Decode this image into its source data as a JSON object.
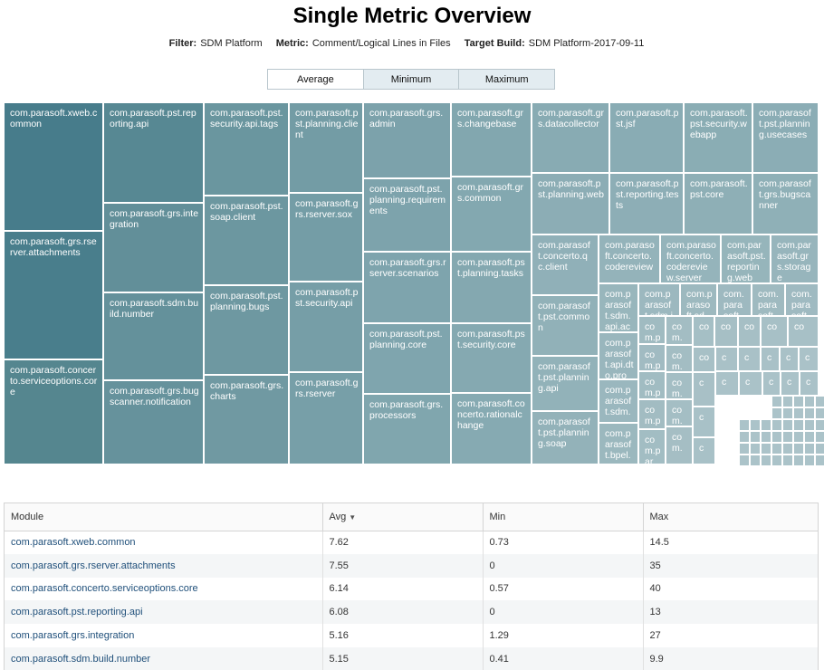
{
  "title": "Single Metric Overview",
  "filters": [
    {
      "key": "Filter:",
      "value": "SDM Platform"
    },
    {
      "key": "Metric:",
      "value": "Comment/Logical Lines in Files"
    },
    {
      "key": "Target Build:",
      "value": "SDM Platform-2017-09-11"
    }
  ],
  "toggle": {
    "options": [
      "Average",
      "Minimum",
      "Maximum"
    ],
    "selected": "Average"
  },
  "treemap": {
    "color_scale": [
      "#447a89",
      "#8cadb6",
      "#a9c1c7"
    ],
    "tiles": [
      {
        "label": "com.parasoft.xweb.common",
        "color": "#477c8b"
      },
      {
        "label": "com.parasoft.grs.rserver.attachments",
        "color": "#497e8c"
      },
      {
        "label": "com.parasoft.concerto.serviceoptions.core",
        "color": "#55868f"
      },
      {
        "label": "com.parasoft.pst.reporting.api",
        "color": "#578893"
      },
      {
        "label": "com.parasoft.grs.integration",
        "color": "#628f99"
      },
      {
        "label": "com.parasoft.sdm.build.number",
        "color": "#64919b"
      },
      {
        "label": "com.parasoft.grs.bugscanner.notification",
        "color": "#66929c"
      },
      {
        "label": "com.parasoft.pst.security.api.tags",
        "color": "#6a969f"
      },
      {
        "label": "com.parasoft.pst.soap.client",
        "color": "#6c97a0"
      },
      {
        "label": "com.parasoft.pst.planning.bugs",
        "color": "#6e98a1"
      },
      {
        "label": "com.parasoft.grs.charts",
        "color": "#7099a2"
      },
      {
        "label": "com.parasoft.pst.planning.client",
        "color": "#739ca5"
      },
      {
        "label": "com.parasoft.grs.rserver.sox",
        "color": "#749da6"
      },
      {
        "label": "com.parasoft.pst.security.api",
        "color": "#769ea7"
      },
      {
        "label": "com.parasoft.grs.rserver",
        "color": "#779fa8"
      },
      {
        "label": "com.parasoft.grs.admin",
        "color": "#7ca2ab"
      },
      {
        "label": "com.parasoft.pst.planning.requirements",
        "color": "#7da3ac"
      },
      {
        "label": "com.parasoft.grs.rserver.scenarios",
        "color": "#7ea4ad"
      },
      {
        "label": "com.parasoft.pst.planning.core",
        "color": "#7fa5ae"
      },
      {
        "label": "com.parasoft.grs.processors",
        "color": "#80a6ae"
      },
      {
        "label": "com.parasoft.grs.changebase",
        "color": "#82a7af"
      },
      {
        "label": "com.parasoft.grs.common",
        "color": "#83a8b0"
      },
      {
        "label": "com.parasoft.pst.planning.tasks",
        "color": "#84a8b0"
      },
      {
        "label": "com.parasoft.pst.security.core",
        "color": "#85a9b1"
      },
      {
        "label": "com.parasoft.concerto.rationalchange",
        "color": "#86aab2"
      },
      {
        "label": "com.parasoft.grs.datacollector",
        "color": "#88abb3"
      },
      {
        "label": "com.parasoft.pst.jsf",
        "color": "#89acb4"
      },
      {
        "label": "com.parasoft.pst.security.webapp",
        "color": "#8aadb4"
      },
      {
        "label": "com.parasoft.pst.planning.usecases",
        "color": "#8badb5"
      },
      {
        "label": "com.parasoft.pst.planning.web",
        "color": "#8cadb5"
      },
      {
        "label": "com.parasoft.pst.reporting.tests",
        "color": "#8daeb6"
      },
      {
        "label": "com.parasoft.pst.core",
        "color": "#8eafb6"
      },
      {
        "label": "com.parasoft.grs.bugscanner",
        "color": "#8fb0b7"
      },
      {
        "label": "com.parasoft.concerto.qc.client",
        "color": "#90b0b8"
      },
      {
        "label": "com.parasoft.pst.common",
        "color": "#91b1b8"
      },
      {
        "label": "com.parasoft.pst.planning.api",
        "color": "#92b2b9"
      },
      {
        "label": "com.parasoft.pst.planning.soap",
        "color": "#93b2b9"
      },
      {
        "label": "com.parasoft.concerto.codereview",
        "color": "#94b3ba"
      },
      {
        "label": "com.parasoft.concerto.codereview.server",
        "color": "#95b4bb"
      },
      {
        "label": "com.parasoft.pst.reporting.web",
        "color": "#96b5bb"
      },
      {
        "label": "com.parasoft.grs.storage",
        "color": "#97b5bc"
      },
      {
        "label": "com.parasoft.sdm.api.ac",
        "color": "#98b6bc"
      },
      {
        "label": "com.parasoft.api.dto.pro",
        "color": "#99b6bd"
      },
      {
        "label": "com.parasoft.sdm.",
        "color": "#9ab7be"
      },
      {
        "label": "com.parasoft.bpel.",
        "color": "#9bb8be"
      },
      {
        "label": "com.parasoft.sdm.ims",
        "color": "#9cb8bf"
      },
      {
        "label": "com.parasoft.sd",
        "color": "#9db9bf"
      },
      {
        "label": "com.parasoft",
        "color": "#9eb9c0"
      },
      {
        "label": "com.parasoft",
        "color": "#9fbac0"
      },
      {
        "label": "com.parasoft",
        "color": "#9fbac1"
      },
      {
        "label": "com.par",
        "color": "#a0bbc1"
      },
      {
        "label": "com.par",
        "color": "#a1bbc2"
      },
      {
        "label": "com.par",
        "color": "#a1bcc2"
      },
      {
        "label": "com.par",
        "color": "#a2bcc2"
      },
      {
        "label": "com.par",
        "color": "#a2bdc3"
      },
      {
        "label": "co m.",
        "color": "#a3bdc3"
      },
      {
        "label": "co m.",
        "color": "#a3bdc3"
      },
      {
        "label": "co m.",
        "color": "#a4bec4"
      },
      {
        "label": "co m.",
        "color": "#a4bec4"
      },
      {
        "label": "co m.",
        "color": "#a5bec4"
      },
      {
        "label": "co",
        "color": "#a5bfc5"
      },
      {
        "label": "co",
        "color": "#a6bfc5"
      },
      {
        "label": "co",
        "color": "#a6bfc5"
      },
      {
        "label": "co",
        "color": "#a7c0c6"
      },
      {
        "label": "co",
        "color": "#a7c0c6"
      },
      {
        "label": "co",
        "color": "#a7c0c6"
      },
      {
        "label": "c",
        "color": "#a8c0c6"
      },
      {
        "label": "c",
        "color": "#a8c1c7"
      },
      {
        "label": "c",
        "color": "#a8c1c7"
      },
      {
        "label": "c",
        "color": "#a9c1c7"
      },
      {
        "label": "c",
        "color": "#a9c1c7"
      },
      {
        "label": "c",
        "color": "#a9c1c7"
      },
      {
        "label": "c",
        "color": "#a9c1c7"
      },
      {
        "label": "c",
        "color": "#aac2c8"
      },
      {
        "label": "c",
        "color": "#aac2c8"
      },
      {
        "label": "c",
        "color": "#aac2c8"
      },
      {
        "label": "c",
        "color": "#aac2c8"
      },
      {
        "label": "c",
        "color": "#aac2c8"
      },
      {
        "label": "c",
        "color": "#aac2c8"
      },
      {
        "label": "c",
        "color": "#abc2c8"
      },
      {
        "label": "c",
        "color": "#abc2c8"
      },
      {
        "label": "c",
        "color": "#abc2c8"
      }
    ]
  },
  "table": {
    "columns": [
      "Module",
      "Avg",
      "Min",
      "Max"
    ],
    "sort_indicator": "▼",
    "rows": [
      [
        "com.parasoft.xweb.common",
        "7.62",
        "0.73",
        "14.5"
      ],
      [
        "com.parasoft.grs.rserver.attachments",
        "7.55",
        "0",
        "35"
      ],
      [
        "com.parasoft.concerto.serviceoptions.core",
        "6.14",
        "0.57",
        "40"
      ],
      [
        "com.parasoft.pst.reporting.api",
        "6.08",
        "0",
        "13"
      ],
      [
        "com.parasoft.grs.integration",
        "5.16",
        "1.29",
        "27"
      ],
      [
        "com.parasoft.sdm.build.number",
        "5.15",
        "0.41",
        "9.9"
      ]
    ]
  }
}
